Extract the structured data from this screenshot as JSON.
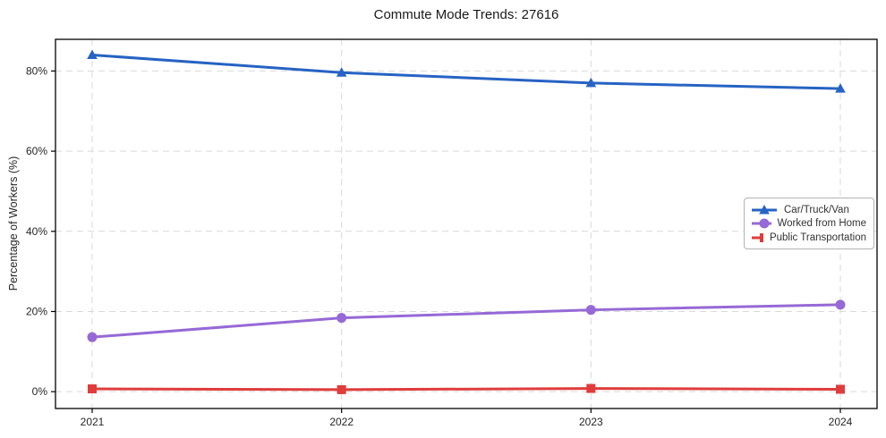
{
  "figure": {
    "background": "#ffffff"
  },
  "chart_data": {
    "type": "line",
    "title": "Commute Mode Trends: 27616",
    "xlabel": "",
    "ylabel": "Percentage of Workers (%)",
    "categories": [
      "2021",
      "2022",
      "2023",
      "2024"
    ],
    "series": [
      {
        "name": "Car/Truck/Van",
        "marker": "triangle",
        "color": "#2663c3",
        "values": [
          84.0,
          79.6,
          77.0,
          75.6
        ]
      },
      {
        "name": "Worked from Home",
        "marker": "circle",
        "color": "#9669d6",
        "values": [
          13.6,
          18.4,
          20.4,
          21.7
        ]
      },
      {
        "name": "Public Transportation",
        "marker": "square",
        "color": "#e03c3c",
        "values": [
          0.7,
          0.5,
          0.8,
          0.6
        ]
      }
    ],
    "yticks": [
      {
        "value": 0,
        "label": "0%"
      },
      {
        "value": 20,
        "label": "20%"
      },
      {
        "value": 40,
        "label": "40%"
      },
      {
        "value": 60,
        "label": "60%"
      },
      {
        "value": 80,
        "label": "80%"
      }
    ],
    "ylim": [
      -4.2,
      87.9
    ],
    "grid": true,
    "grid_style": "dashed",
    "legend_position": "middle-right",
    "colors": {
      "grid": "#d9d9d9",
      "axis": "#000000",
      "tick_text": "#262626",
      "legend_border": "#b3b3b3"
    }
  }
}
